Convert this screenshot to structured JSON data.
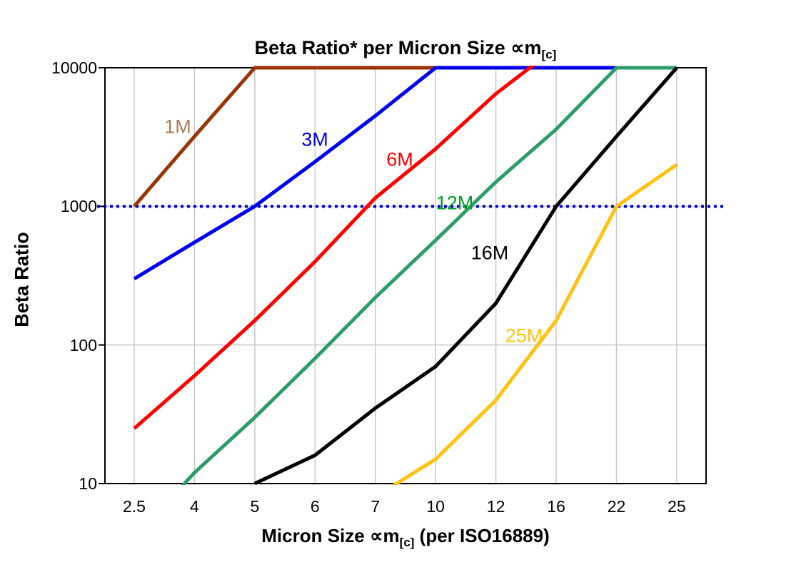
{
  "title": {
    "text_main": "Beta Ratio* per Micron Size ",
    "symbol": "∝m",
    "subscript": "[c]"
  },
  "axes": {
    "y": {
      "title": "Beta Ratio",
      "scale": "log",
      "tick_labels": [
        "10000",
        "1000",
        "100",
        "10"
      ],
      "tick_values": [
        10000,
        1000,
        100,
        10
      ]
    },
    "x": {
      "title_main": "Micron Size ",
      "symbol": "∝m",
      "subscript": "[c]",
      "title_suffix": " (per ISO16889)",
      "tick_labels": [
        "2.5",
        "4",
        "5",
        "6",
        "7",
        "10",
        "12",
        "16",
        "22",
        "25"
      ]
    }
  },
  "reference_line": {
    "value": 1000,
    "color": "#0000CC",
    "style": "dotted"
  },
  "colors": {
    "background": "#FFFFFF",
    "grid": "#C8C8C8",
    "axis": "#000000"
  },
  "chart_data": {
    "type": "line",
    "title": "Beta Ratio* per Micron Size ∝m[c]",
    "xlabel": "Micron Size ∝m[c] (per ISO16889)",
    "ylabel": "Beta Ratio",
    "x_scale": "categorical",
    "y_scale": "log",
    "ylim": [
      10,
      10000
    ],
    "grid": true,
    "legend_position": "inline-labels",
    "clip_to_plot": true,
    "categories": [
      2.5,
      4,
      5,
      6,
      7,
      10,
      12,
      16,
      22,
      25
    ],
    "series": [
      {
        "name": "1M",
        "color": "#993308",
        "label_color": "#A97C55",
        "values": [
          1000,
          3200,
          10000,
          10000,
          10000,
          10000,
          null,
          null,
          null,
          null
        ]
      },
      {
        "name": "3M",
        "color": "#0000EE",
        "label_color": "#0000EE",
        "values": [
          300,
          550,
          1000,
          2100,
          4500,
          10000,
          10000,
          10000,
          10000,
          null
        ]
      },
      {
        "name": "6M",
        "color": "#FF0000",
        "label_color": "#FF0000",
        "values": [
          25,
          60,
          150,
          400,
          1150,
          2600,
          6500,
          14000,
          null,
          null
        ]
      },
      {
        "name": "12M",
        "color": "#2E9C68",
        "label_color": "#00A123",
        "values": [
          4,
          12,
          30,
          80,
          220,
          570,
          1500,
          3600,
          10000,
          10000
        ]
      },
      {
        "name": "16M",
        "color": "#000000",
        "label_color": "#000000",
        "values": [
          null,
          null,
          10,
          16,
          35,
          70,
          200,
          1000,
          3200,
          10000
        ]
      },
      {
        "name": "25M",
        "color": "#FFC210",
        "label_color": "#FFC210",
        "values": [
          null,
          null,
          null,
          null,
          8,
          15,
          40,
          150,
          1000,
          2000
        ]
      }
    ]
  }
}
